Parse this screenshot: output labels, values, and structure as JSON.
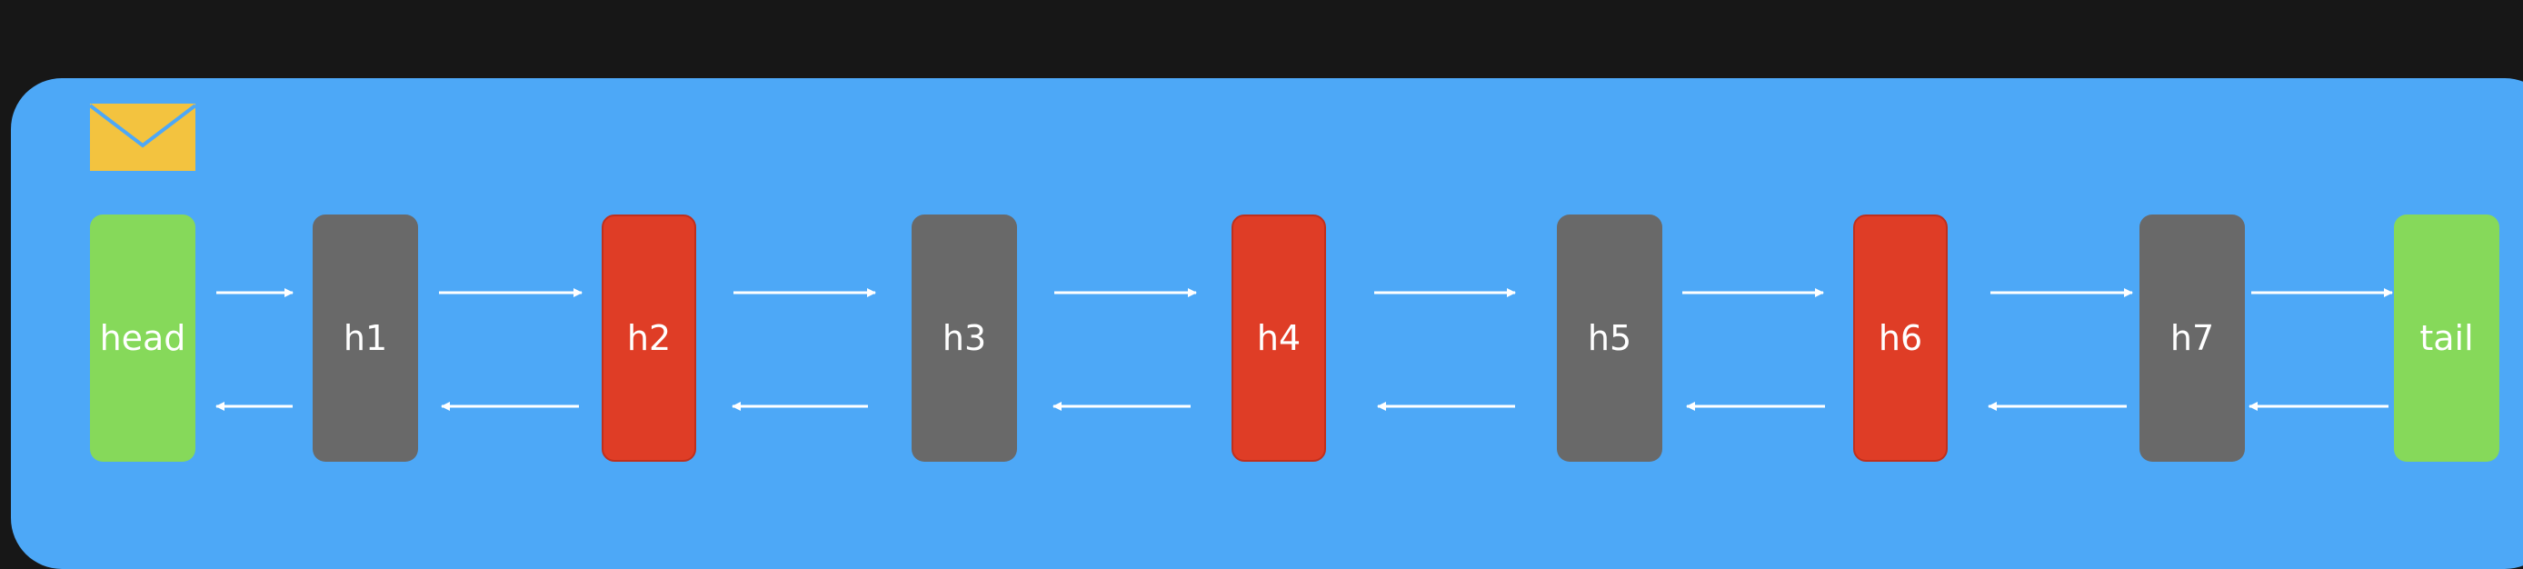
{
  "diagram": {
    "nodes": [
      {
        "id": "head",
        "label": "head",
        "color": "#86d95a"
      },
      {
        "id": "h1",
        "label": "h1",
        "color": "#696969"
      },
      {
        "id": "h2",
        "label": "h2",
        "color": "#df3d26"
      },
      {
        "id": "h3",
        "label": "h3",
        "color": "#696969"
      },
      {
        "id": "h4",
        "label": "h4",
        "color": "#df3d26"
      },
      {
        "id": "h5",
        "label": "h5",
        "color": "#696969"
      },
      {
        "id": "h6",
        "label": "h6",
        "color": "#df3d26"
      },
      {
        "id": "h7",
        "label": "h7",
        "color": "#696969"
      },
      {
        "id": "tail",
        "label": "tail",
        "color": "#86d95a"
      }
    ],
    "links": {
      "forward": "next",
      "backward": "prev"
    },
    "icons": {
      "envelope": "envelope-icon"
    },
    "colors": {
      "background": "#171717",
      "panel": "#4da8f7",
      "envelope": "#f3c33f",
      "envelope_flap": "#4da8f7",
      "arrow": "#ffffff"
    }
  }
}
